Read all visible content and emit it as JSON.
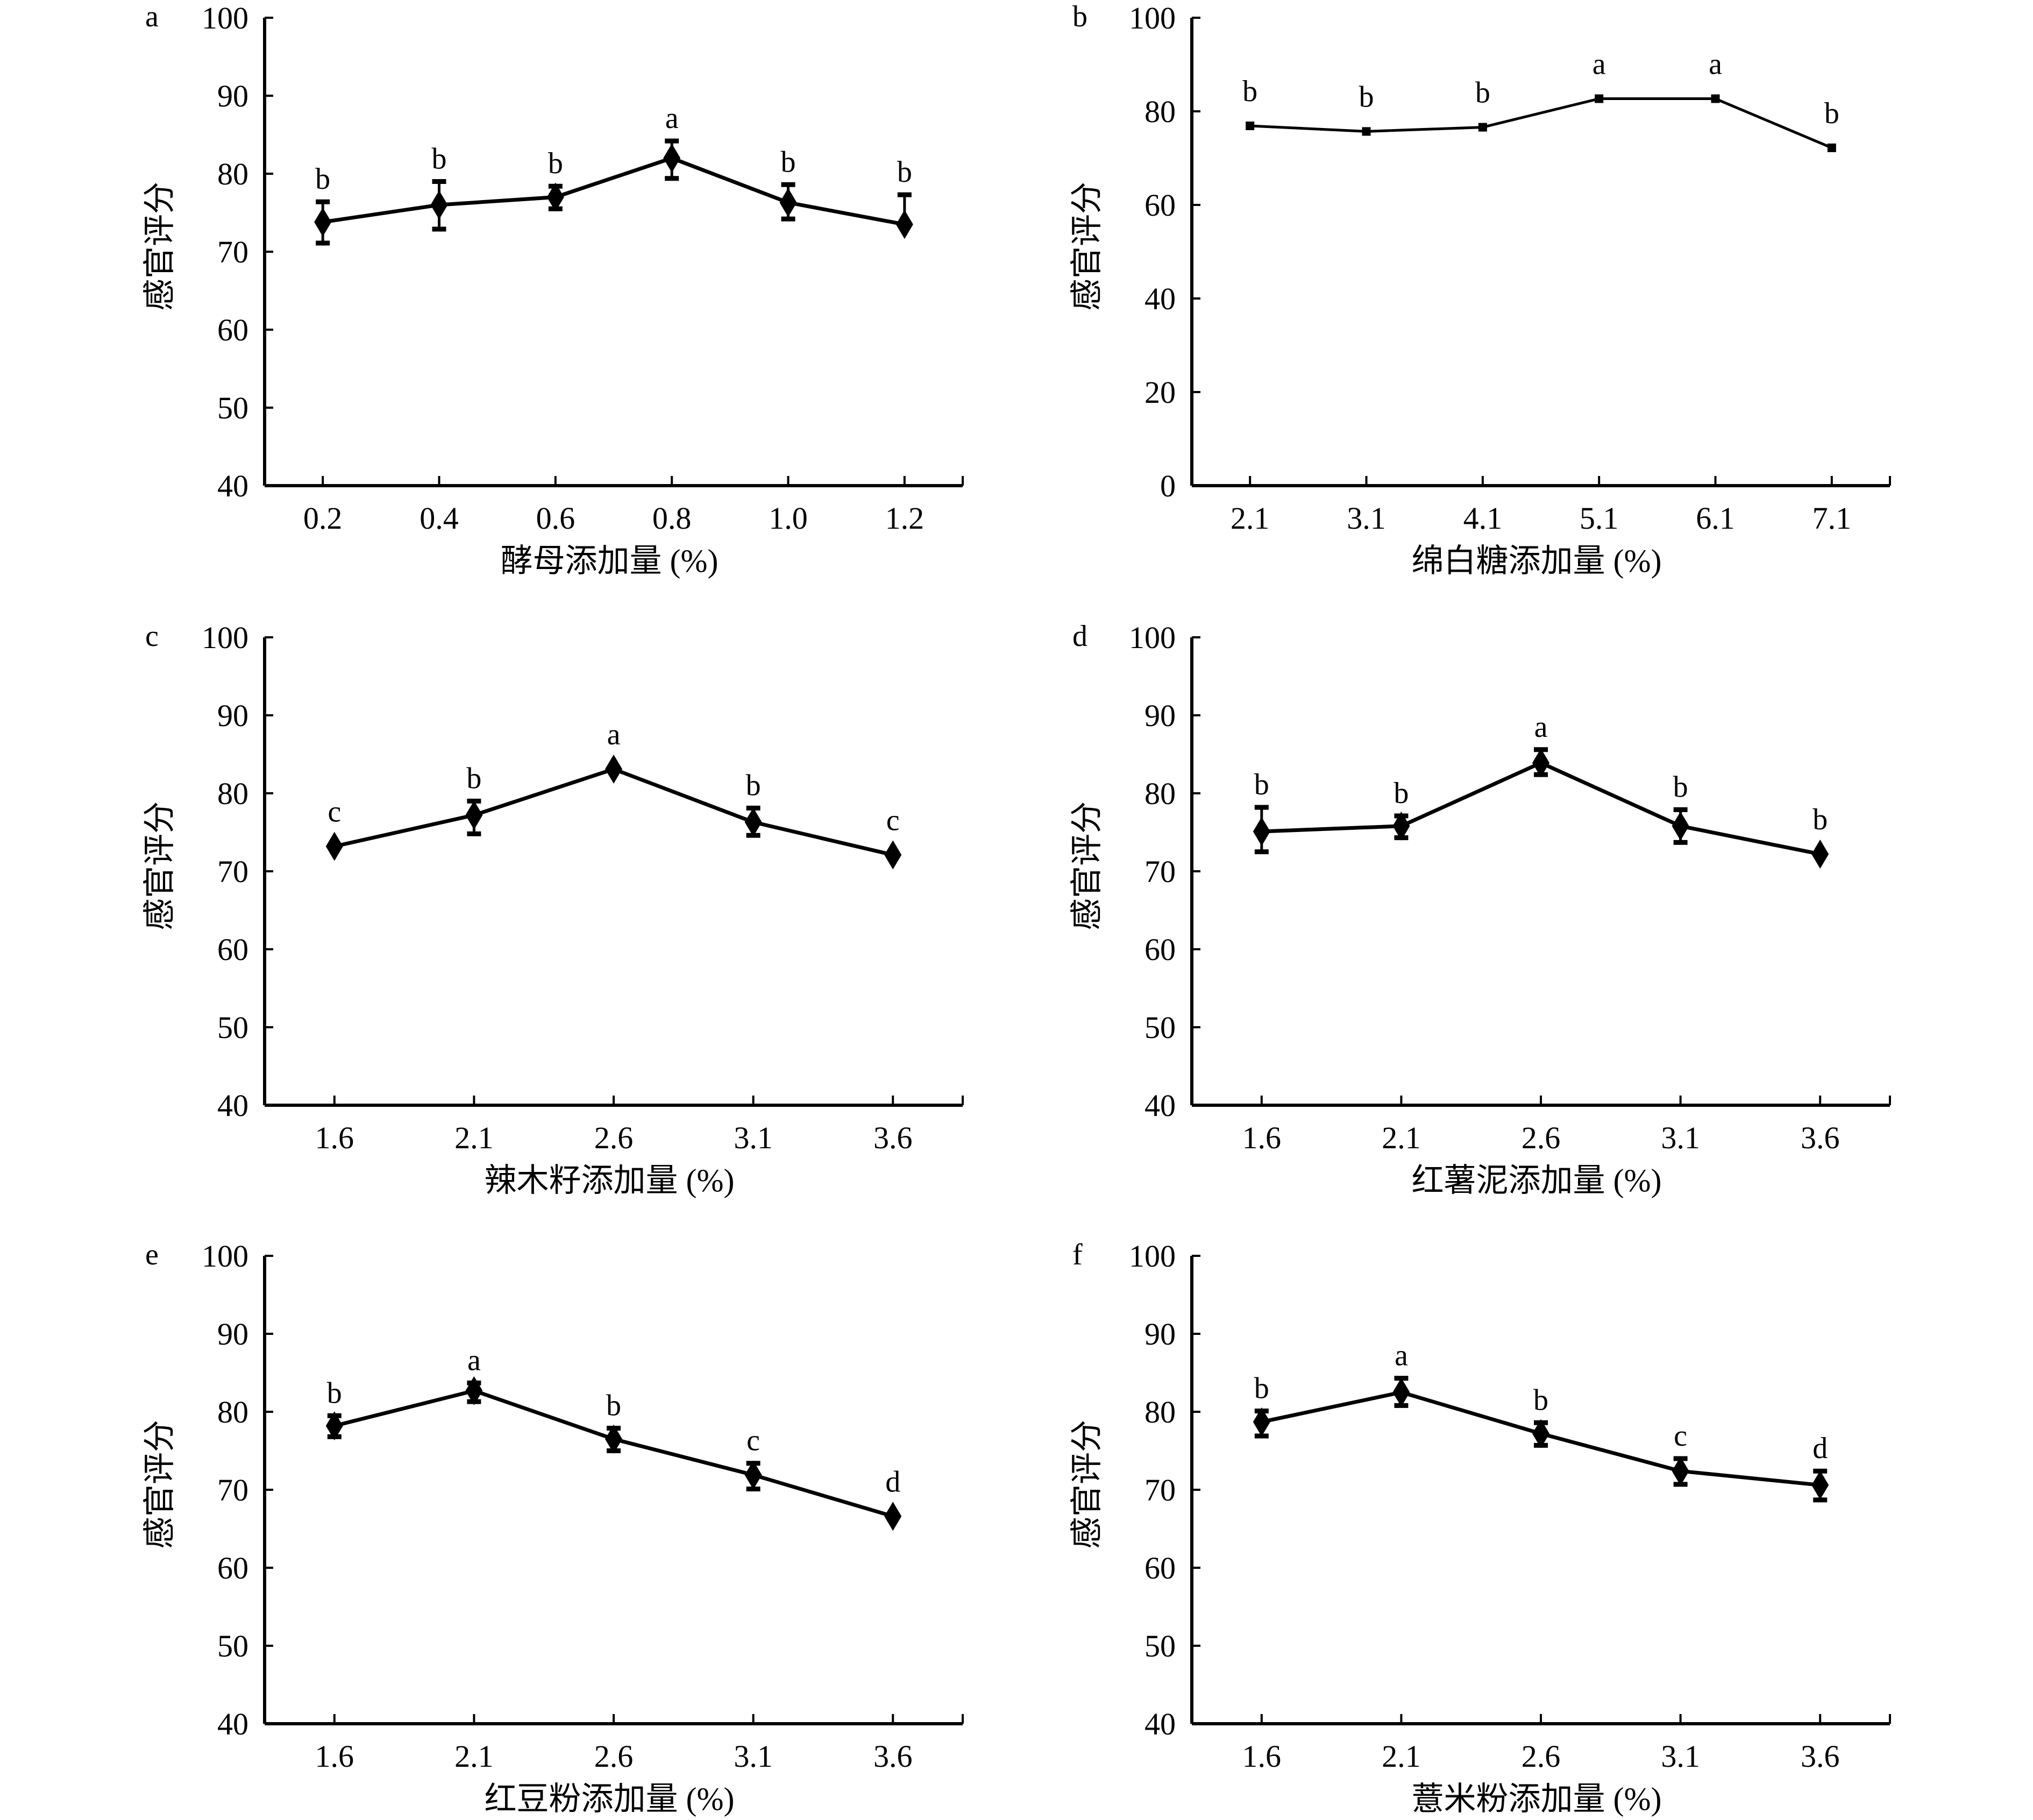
{
  "figure": {
    "description": "Sensory score vs. addition level for six ingredients"
  },
  "chart_data": [
    {
      "id": "a",
      "panel_label": "a",
      "type": "line",
      "marker": "diamond",
      "title": "",
      "xlabel": "酵母添加量 (%)",
      "ylabel": "感官评分",
      "categories": [
        "0.2",
        "0.4",
        "0.6",
        "0.8",
        "1.0",
        "1.2"
      ],
      "values": [
        73.8,
        76.0,
        77.0,
        82.0,
        76.3,
        73.5
      ],
      "error_upper": [
        76.4,
        79.0,
        78.4,
        84.2,
        78.6,
        77.3
      ],
      "error_lower": [
        71.1,
        72.9,
        75.5,
        79.4,
        74.2,
        null
      ],
      "significance": [
        "b",
        "b",
        "b",
        "a",
        "b",
        "b"
      ],
      "ylim": [
        40,
        100
      ],
      "yticks": [
        40,
        50,
        60,
        70,
        80,
        90,
        100
      ],
      "grid": false,
      "legend": "none"
    },
    {
      "id": "b",
      "panel_label": "b",
      "type": "line",
      "marker": "square",
      "title": "",
      "xlabel": "绵白糖添加量 (%)",
      "ylabel": "感官评分",
      "categories": [
        "2.1",
        "3.1",
        "4.1",
        "5.1",
        "6.1",
        "7.1"
      ],
      "values": [
        76.9,
        75.7,
        76.6,
        82.7,
        82.7,
        72.2
      ],
      "error_upper": [
        null,
        null,
        null,
        null,
        null,
        null
      ],
      "error_lower": [
        null,
        null,
        null,
        null,
        null,
        null
      ],
      "significance": [
        "b",
        "b",
        "b",
        "a",
        "a",
        "b"
      ],
      "ylim": [
        0,
        100
      ],
      "yticks": [
        0,
        20,
        40,
        60,
        80,
        100
      ],
      "grid": false,
      "legend": "none"
    },
    {
      "id": "c",
      "panel_label": "c",
      "type": "line",
      "marker": "diamond",
      "title": "",
      "xlabel": "辣木籽添加量 (%)",
      "ylabel": "感官评分",
      "categories": [
        "1.6",
        "2.1",
        "2.6",
        "3.1",
        "3.6"
      ],
      "values": [
        73.2,
        77.2,
        83.1,
        76.3,
        72.1
      ],
      "error_upper": [
        null,
        79.0,
        null,
        78.1,
        null
      ],
      "error_lower": [
        null,
        74.8,
        null,
        74.6,
        null
      ],
      "significance": [
        "c",
        "b",
        "a",
        "b",
        "c"
      ],
      "ylim": [
        40,
        100
      ],
      "yticks": [
        40,
        50,
        60,
        70,
        80,
        90,
        100
      ],
      "grid": false,
      "legend": "none"
    },
    {
      "id": "d",
      "panel_label": "d",
      "type": "line",
      "marker": "diamond",
      "title": "",
      "xlabel": "红薯泥添加量 (%)",
      "ylabel": "感官评分",
      "categories": [
        "1.6",
        "2.1",
        "2.6",
        "3.1",
        "3.6"
      ],
      "values": [
        75.1,
        75.8,
        83.9,
        75.8,
        72.2
      ],
      "error_upper": [
        78.2,
        77.1,
        85.6,
        77.9,
        null
      ],
      "error_lower": [
        72.5,
        74.3,
        82.4,
        73.7,
        null
      ],
      "significance": [
        "b",
        "b",
        "a",
        "b",
        "b"
      ],
      "ylim": [
        40,
        100
      ],
      "yticks": [
        40,
        50,
        60,
        70,
        80,
        90,
        100
      ],
      "grid": false,
      "legend": "none"
    },
    {
      "id": "e",
      "panel_label": "e",
      "type": "line",
      "marker": "diamond",
      "title": "",
      "xlabel": "红豆粉添加量 (%)",
      "ylabel": "感官评分",
      "categories": [
        "1.6",
        "2.1",
        "2.6",
        "3.1",
        "3.6"
      ],
      "values": [
        78.2,
        82.7,
        76.5,
        71.9,
        66.6
      ],
      "error_upper": [
        79.5,
        83.7,
        77.9,
        73.4,
        null
      ],
      "error_lower": [
        76.8,
        81.3,
        75.0,
        70.1,
        null
      ],
      "significance": [
        "b",
        "a",
        "b",
        "c",
        "d"
      ],
      "ylim": [
        40,
        100
      ],
      "yticks": [
        40,
        50,
        60,
        70,
        80,
        90,
        100
      ],
      "grid": false,
      "legend": "none"
    },
    {
      "id": "f",
      "panel_label": "f",
      "type": "line",
      "marker": "diamond",
      "title": "",
      "xlabel": "薏米粉添加量 (%)",
      "ylabel": "感官评分",
      "categories": [
        "1.6",
        "2.1",
        "2.6",
        "3.1",
        "3.6"
      ],
      "values": [
        78.7,
        82.5,
        77.2,
        72.4,
        70.6
      ],
      "error_upper": [
        80.1,
        84.3,
        78.6,
        74.0,
        72.4
      ],
      "error_lower": [
        76.9,
        80.8,
        75.7,
        70.7,
        68.7
      ],
      "significance": [
        "b",
        "a",
        "b",
        "c",
        "d"
      ],
      "ylim": [
        40,
        100
      ],
      "yticks": [
        40,
        50,
        60,
        70,
        80,
        90,
        100
      ],
      "grid": false,
      "legend": "none"
    }
  ]
}
